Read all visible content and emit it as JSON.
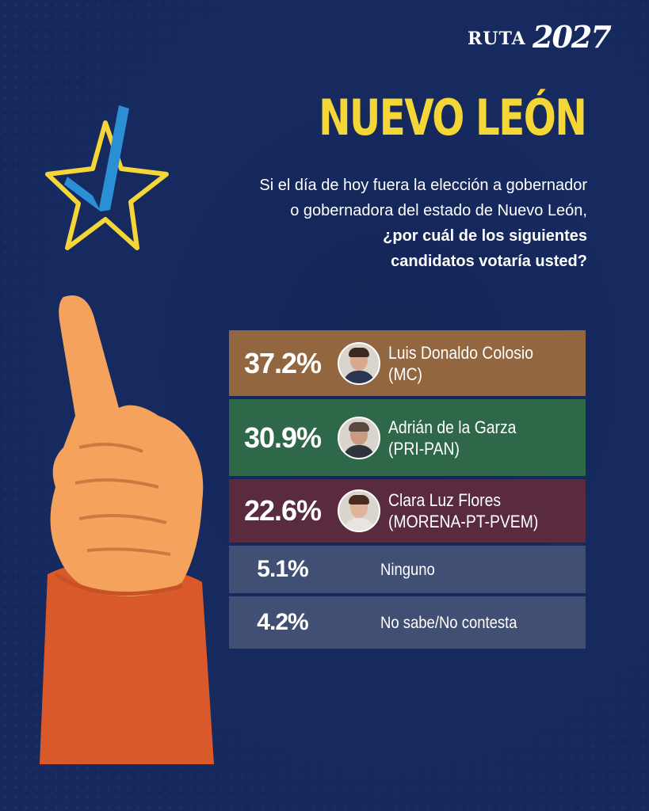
{
  "logo": {
    "ruta": "RUTA",
    "year": "2027"
  },
  "title": "NUEVO LEÓN",
  "question": {
    "line1": "Si el día de hoy fuera la elección a gobernador",
    "line2": "o gobernadora del estado de Nuevo León,",
    "line3": "¿por cuál de los siguientes",
    "line4": "candidatos votaría usted?"
  },
  "colors": {
    "background": "#17285e",
    "title": "#f5d637",
    "mc": "#92673f",
    "pri_pan": "#2f6848",
    "morena": "#5a2a3f",
    "neutral": "#404f73"
  },
  "results": [
    {
      "pct": "37.2%",
      "value": 37.2,
      "name": "Luis Donaldo Colosio",
      "party": "(MC)",
      "color": "#92673f"
    },
    {
      "pct": "30.9%",
      "value": 30.9,
      "name": "Adrián de la Garza",
      "party": "(PRI-PAN)",
      "color": "#2f6848"
    },
    {
      "pct": "22.6%",
      "value": 22.6,
      "name": "Clara Luz Flores",
      "party": "(MORENA-PT-PVEM)",
      "color": "#5a2a3f"
    },
    {
      "pct": "5.1%",
      "value": 5.1,
      "name": "Ninguno",
      "color": "#404f73"
    },
    {
      "pct": "4.2%",
      "value": 4.2,
      "name": "No sabe/No contesta",
      "color": "#404f73"
    }
  ]
}
